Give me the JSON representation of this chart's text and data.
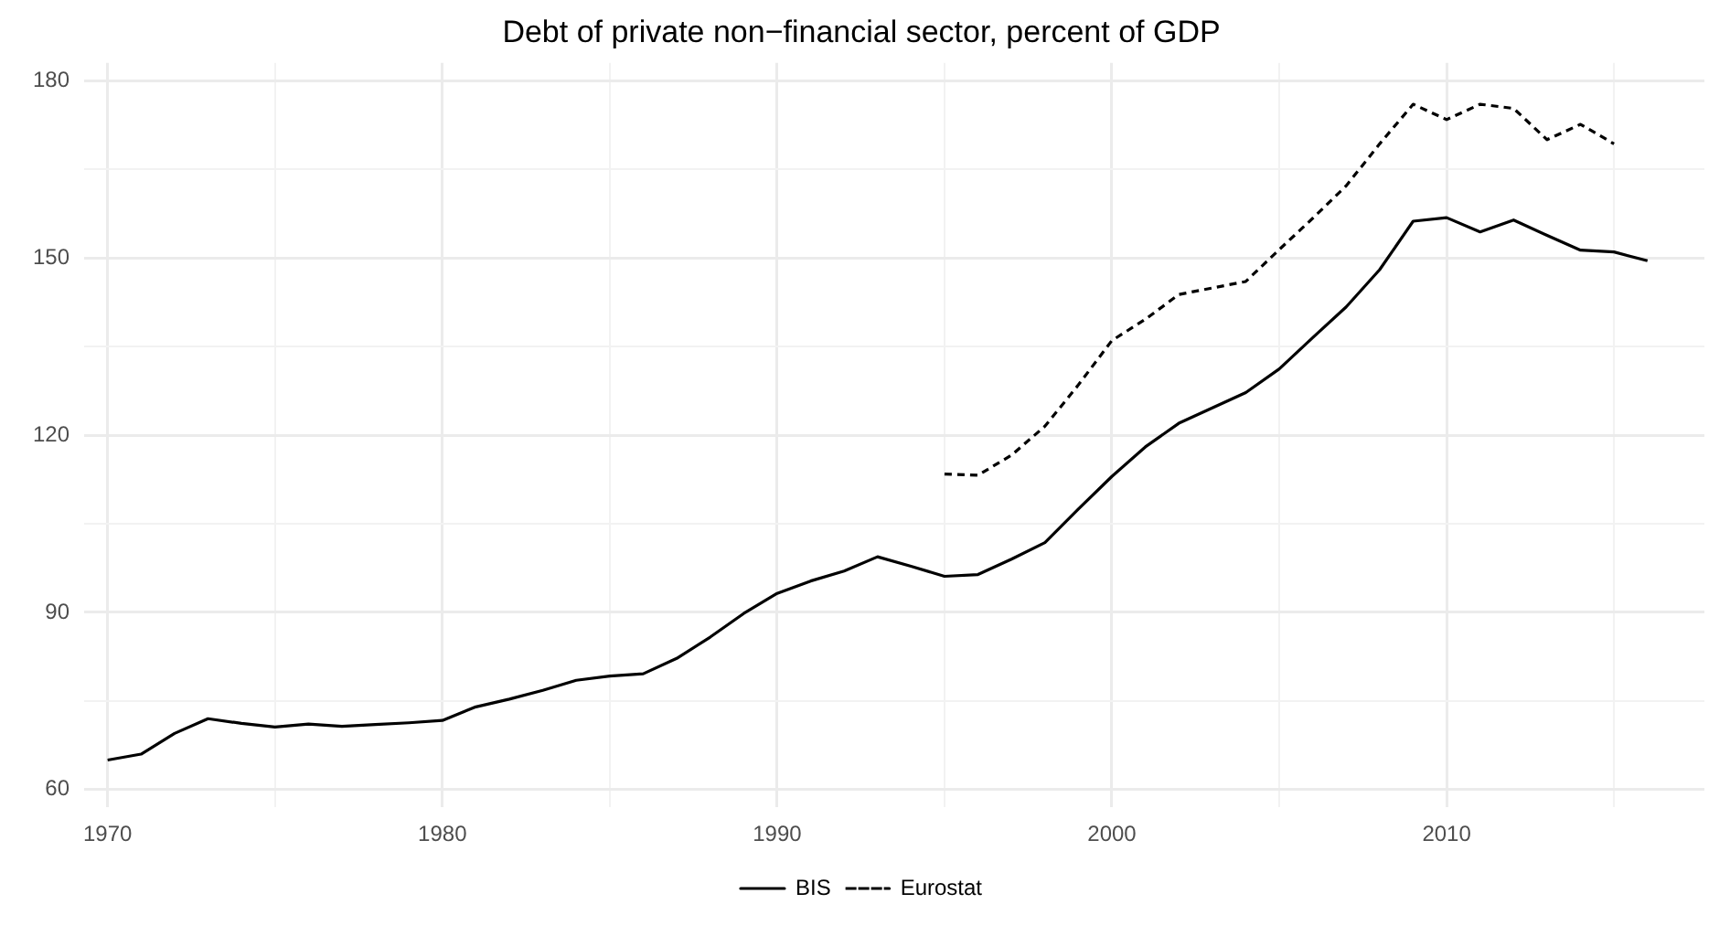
{
  "chart_data": {
    "type": "line",
    "title": "Debt of private non−financial sector, percent of GDP",
    "xlim": [
      1969.3,
      2017.7
    ],
    "xticks": [
      1970,
      {
        "value": 1975,
        "label": null
      },
      1980,
      {
        "value": 1985,
        "label": null
      },
      1990,
      {
        "value": 1995,
        "label": null
      },
      2000,
      {
        "value": 2005,
        "label": null
      },
      2010,
      {
        "value": 2015,
        "label": null
      }
    ],
    "ylim": [
      57,
      183
    ],
    "yticks": [
      60,
      {
        "value": 75,
        "label": null
      },
      90,
      {
        "value": 105,
        "label": null
      },
      120,
      {
        "value": 135,
        "label": null
      },
      150,
      {
        "value": 165,
        "label": null
      },
      180
    ],
    "grid": true,
    "legend": "bottom",
    "marker": "none",
    "series": [
      {
        "name": "BIS",
        "color": "#000000",
        "line_style": "solid",
        "x": [
          1970,
          1971,
          1972,
          1973,
          1974,
          1975,
          1976,
          1977,
          1978,
          1979,
          1980,
          1981,
          1982,
          1983,
          1984,
          1985,
          1986,
          1987,
          1988,
          1989,
          1990,
          1991,
          1992,
          1993,
          1994,
          1995,
          1996,
          1997,
          1998,
          1999,
          2000,
          2001,
          2002,
          2003,
          2004,
          2005,
          2006,
          2007,
          2008,
          2009,
          2010,
          2011,
          2012,
          2013,
          2014,
          2015,
          2016
        ],
        "values": [
          65,
          66,
          69.5,
          72,
          71.2,
          70.6,
          71.1,
          70.7,
          71,
          71.3,
          71.7,
          74,
          75.3,
          76.8,
          78.5,
          79.2,
          79.6,
          82.2,
          85.8,
          89.8,
          93.2,
          95.3,
          97,
          99.4,
          97.8,
          96.1,
          96.4,
          99,
          101.8,
          107.5,
          113,
          118,
          122,
          124.6,
          127.2,
          131.2,
          136.5,
          141.7,
          148,
          156.2,
          156.8,
          154.4,
          156.4,
          153.8,
          151.3,
          151,
          149.5
        ]
      },
      {
        "name": "Eurostat",
        "color": "#000000",
        "line_style": "dashed",
        "x": [
          1995,
          1996,
          1997,
          1998,
          1999,
          2000,
          2001,
          2002,
          2003,
          2004,
          2005,
          2006,
          2007,
          2008,
          2009,
          2010,
          2011,
          2012,
          2013,
          2014,
          2015
        ],
        "values": [
          113.4,
          113.2,
          116.6,
          121.5,
          128.5,
          136,
          139.6,
          143.8,
          144.9,
          146,
          151.4,
          156.7,
          162.2,
          169.3,
          176,
          173.4,
          176,
          175.3,
          170,
          172.6,
          169.3
        ]
      }
    ]
  }
}
